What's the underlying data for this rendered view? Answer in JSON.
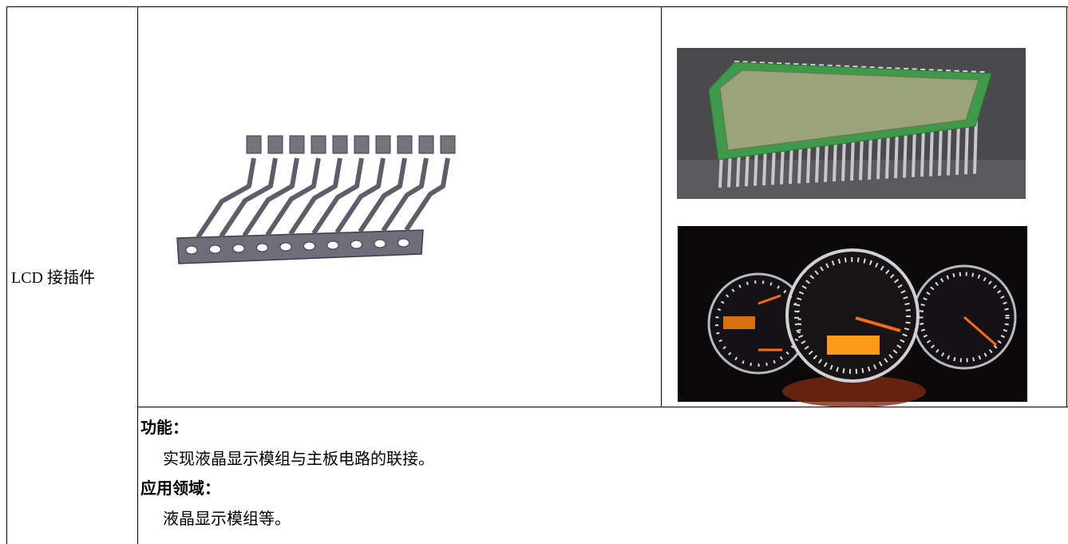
{
  "item": {
    "label": "LCD 接插件"
  },
  "function": {
    "heading": "功能：",
    "text": "实现液晶显示模组与主板电路的联接。"
  },
  "application": {
    "heading": "应用领域：",
    "text": "液晶显示模组等。"
  }
}
